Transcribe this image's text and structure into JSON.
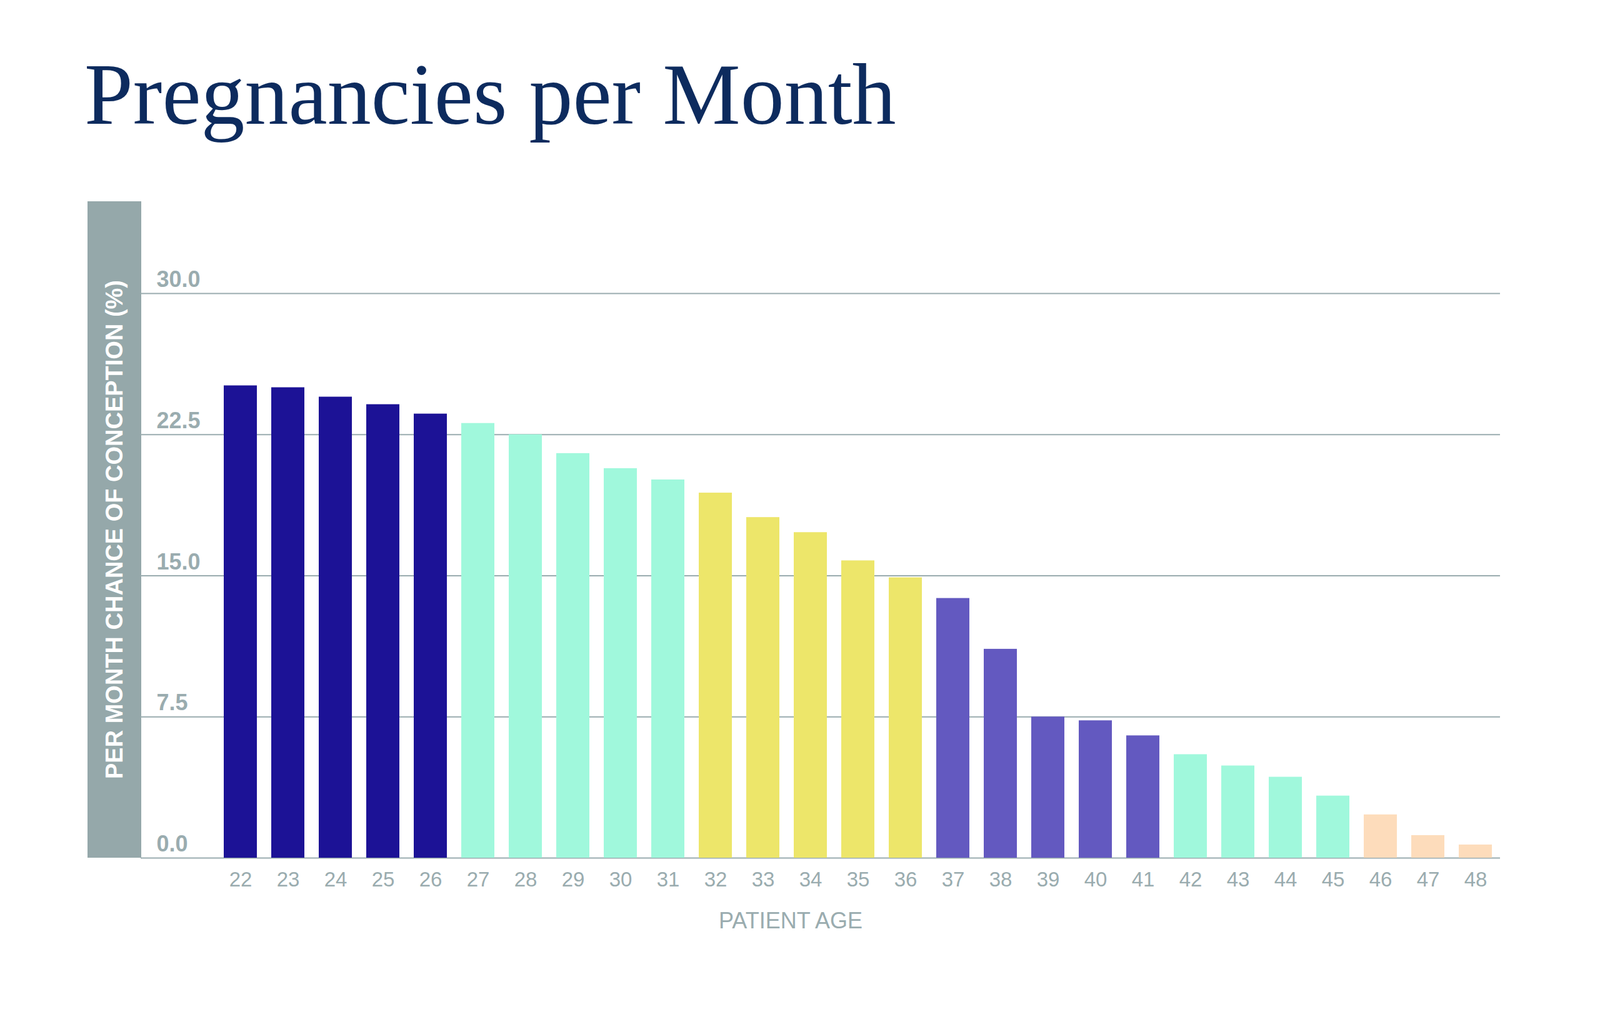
{
  "chart_data": {
    "type": "bar",
    "title": "Pregnancies per Month",
    "xlabel": "PATIENT AGE",
    "ylabel": "PER MONTH CHANCE OF CONCEPTION (%)",
    "categories": [
      22,
      23,
      24,
      25,
      26,
      27,
      28,
      29,
      30,
      31,
      32,
      33,
      34,
      35,
      36,
      37,
      38,
      39,
      40,
      41,
      42,
      43,
      44,
      45,
      46,
      47,
      48
    ],
    "values": [
      25.1,
      25.0,
      24.5,
      24.1,
      23.6,
      23.1,
      22.5,
      21.5,
      20.7,
      20.1,
      19.4,
      18.1,
      17.3,
      15.8,
      14.9,
      13.8,
      11.1,
      7.5,
      7.3,
      6.5,
      5.5,
      4.9,
      4.3,
      3.3,
      2.3,
      1.2,
      0.7
    ],
    "colors": [
      "#1c1296",
      "#1c1296",
      "#1c1296",
      "#1c1296",
      "#1c1296",
      "#a0f8dc",
      "#a0f8dc",
      "#a0f8dc",
      "#a0f8dc",
      "#a0f8dc",
      "#ede66a",
      "#ede66a",
      "#ede66a",
      "#ede66a",
      "#ede66a",
      "#6359c0",
      "#6359c0",
      "#6359c0",
      "#6359c0",
      "#6359c0",
      "#a0f8dc",
      "#a0f8dc",
      "#a0f8dc",
      "#a0f8dc",
      "#fddcbb",
      "#fddcbb",
      "#fddcbb"
    ],
    "ylim": [
      0,
      30
    ],
    "yticks": [
      {
        "value": 0,
        "label": "0.0"
      },
      7.5,
      {
        "value": 15,
        "label": "15.0"
      },
      22.5,
      {
        "value": 30,
        "label": "30.0"
      }
    ],
    "grid": true
  }
}
